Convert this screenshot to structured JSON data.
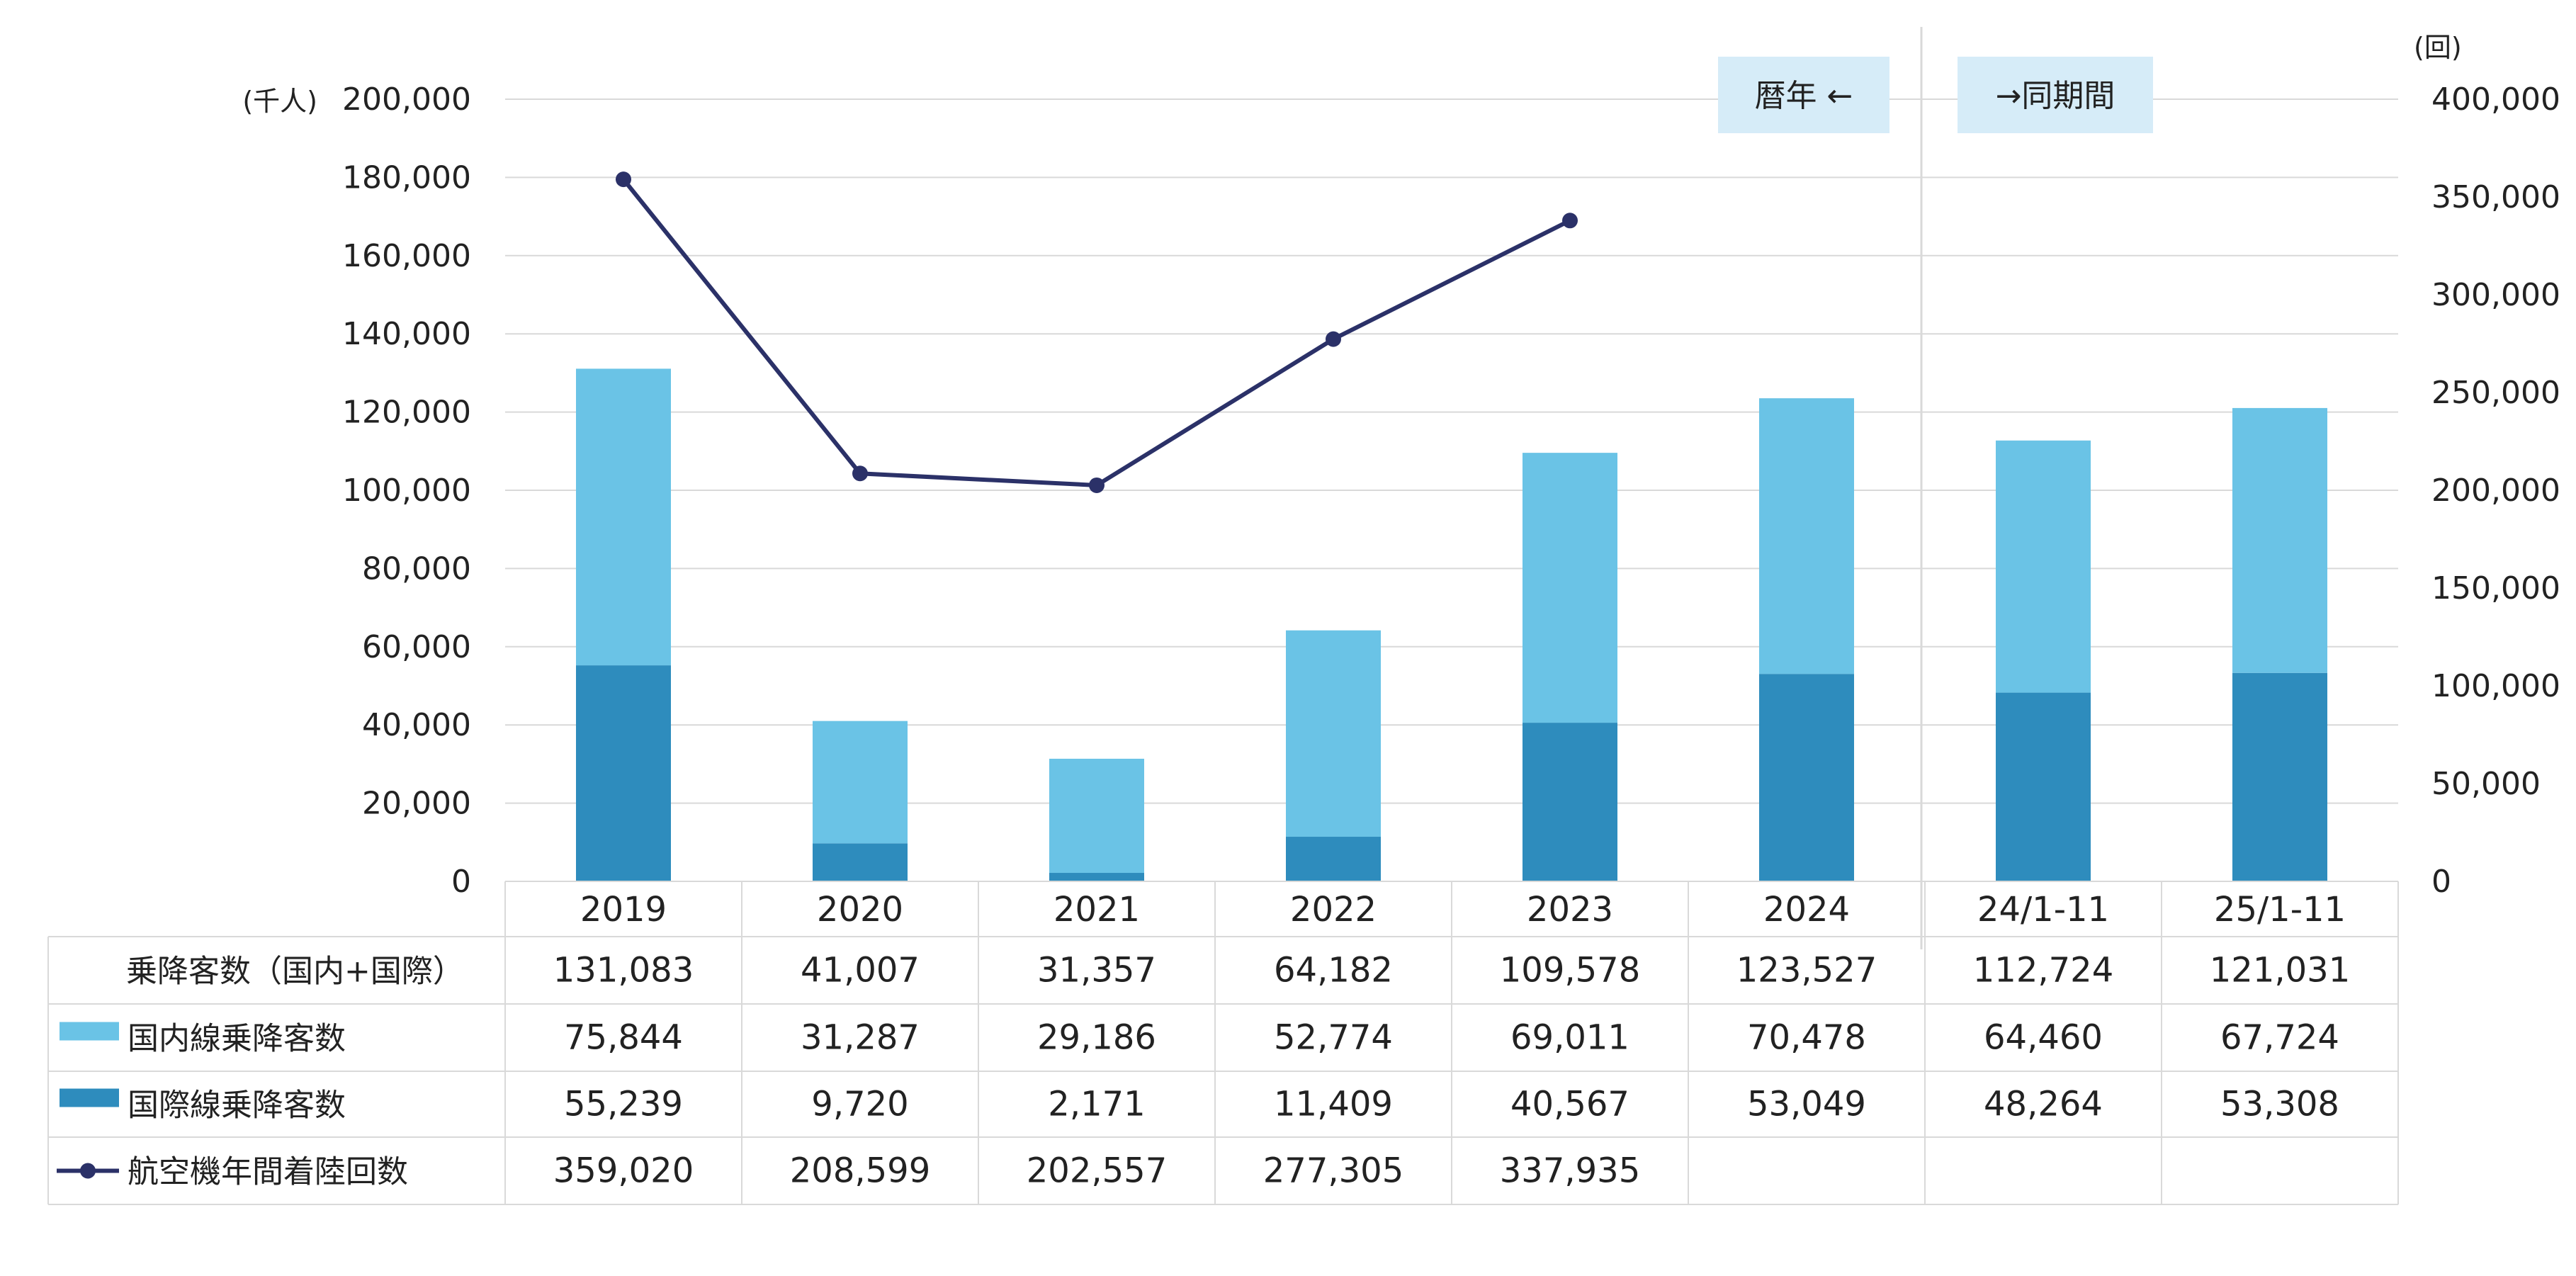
{
  "chart_data": {
    "type": "bar",
    "categories": [
      "2019",
      "2020",
      "2021",
      "2022",
      "2023",
      "2024",
      "24/1-11",
      "25/1-11"
    ],
    "left_axis": {
      "unit": "(千人)",
      "ylim": [
        0,
        200000
      ],
      "ticks": [
        "0",
        "20,000",
        "40,000",
        "60,000",
        "80,000",
        "100,000",
        "120,000",
        "140,000",
        "160,000",
        "180,000",
        "200,000"
      ]
    },
    "right_axis": {
      "unit": "(回)",
      "ylim": [
        0,
        400000
      ],
      "ticks": [
        "0",
        "50,000",
        "100,000",
        "150,000",
        "200,000",
        "250,000",
        "300,000",
        "350,000",
        "400,000"
      ]
    },
    "series": [
      {
        "name": "乗降客数（国内+国際）",
        "type": "total",
        "values": [
          131083,
          41007,
          31357,
          64182,
          109578,
          123527,
          112724,
          121031
        ],
        "labels": [
          "131,083",
          "41,007",
          "31,357",
          "64,182",
          "109,578",
          "123,527",
          "112,724",
          "121,031"
        ]
      },
      {
        "name": "国内線乗降客数",
        "type": "bar",
        "stack": "top",
        "color": "#6ac3e6",
        "values": [
          75844,
          31287,
          29186,
          52774,
          69011,
          70478,
          64460,
          67724
        ],
        "labels": [
          "75,844",
          "31,287",
          "29,186",
          "52,774",
          "69,011",
          "70,478",
          "64,460",
          "67,724"
        ]
      },
      {
        "name": "国際線乗降客数",
        "type": "bar",
        "stack": "bottom",
        "color": "#2e8cbd",
        "values": [
          55239,
          9720,
          2171,
          11409,
          40567,
          53049,
          48264,
          53308
        ],
        "labels": [
          "55,239",
          "9,720",
          "2,171",
          "11,409",
          "40,567",
          "53,049",
          "48,264",
          "53,308"
        ]
      },
      {
        "name": "航空機年間着陸回数",
        "type": "line",
        "axis": "right",
        "color": "#2b3168",
        "values": [
          359020,
          208599,
          202557,
          277305,
          337935,
          null,
          null,
          null
        ],
        "labels": [
          "359,020",
          "208,599",
          "202,557",
          "277,305",
          "337,935",
          "",
          "",
          ""
        ]
      }
    ],
    "annotations": {
      "left": "暦年 ←",
      "right": "→同期間"
    },
    "grid": true,
    "legend": "table-left"
  },
  "colors": {
    "domestic": "#6ac3e6",
    "international": "#2e8cbd",
    "line": "#2b3168",
    "grid": "#d9d9d9",
    "note_bg": "#d6ecf8"
  }
}
